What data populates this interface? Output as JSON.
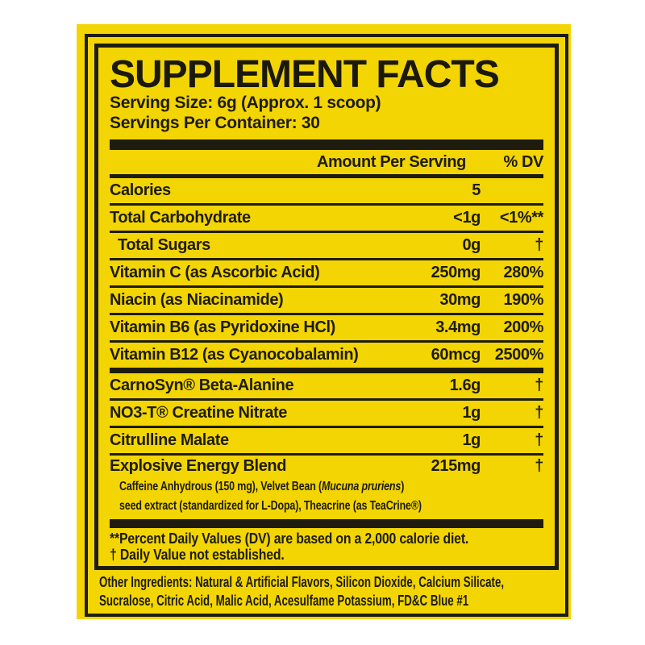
{
  "label": {
    "title": "SUPPLEMENT FACTS",
    "serving_size": "Serving Size: 6g (Approx. 1 scoop)",
    "servings_per_container": "Servings Per Container: 30",
    "header": {
      "amount": "Amount Per Serving",
      "dv": "% DV"
    },
    "rows": [
      {
        "name": "Calories",
        "amount": "5",
        "dv": ""
      },
      {
        "name": "Total Carbohydrate",
        "amount": "<1g",
        "dv": "<1%**"
      },
      {
        "name": "Total Sugars",
        "amount": "0g",
        "dv": "†"
      },
      {
        "name": "Vitamin C (as Ascorbic Acid)",
        "amount": "250mg",
        "dv": "280%"
      },
      {
        "name": "Niacin (as Niacinamide)",
        "amount": "30mg",
        "dv": "190%"
      },
      {
        "name": "Vitamin B6 (as Pyridoxine HCl)",
        "amount": "3.4mg",
        "dv": "200%"
      },
      {
        "name": "Vitamin B12 (as Cyanocobalamin)",
        "amount": "60mcg",
        "dv": "2500%"
      },
      {
        "name": "CarnoSyn® Beta-Alanine",
        "amount": "1.6g",
        "dv": "†"
      },
      {
        "name": "NO3-T® Creatine Nitrate",
        "amount": "1g",
        "dv": "†"
      },
      {
        "name": "Citrulline Malate",
        "amount": "1g",
        "dv": "†"
      },
      {
        "name": "Explosive Energy Blend",
        "amount": "215mg",
        "dv": "†"
      }
    ],
    "blend_sub": {
      "line1_pre": "Caffeine Anhydrous (150 mg), Velvet Bean (",
      "line1_italic": "Mucuna pruriens",
      "line1_post": ")",
      "line2": "seed extract (standardized for L-Dopa), Theacrine (as TeaCrine®)"
    },
    "footnotes": [
      "**Percent Daily Values (DV) are based on a 2,000 calorie diet.",
      "† Daily Value not established."
    ],
    "other_ingredients": [
      "Other Ingredients: Natural & Artificial Flavors, Silicon Dioxide, Calcium Silicate,",
      "Sucralose, Citric Acid, Malic Acid, Acesulfame Potassium, FD&C Blue #1"
    ],
    "colors": {
      "background": "#F3D503",
      "ink": "#1E1C0E",
      "page": "#FFFFFF"
    }
  }
}
